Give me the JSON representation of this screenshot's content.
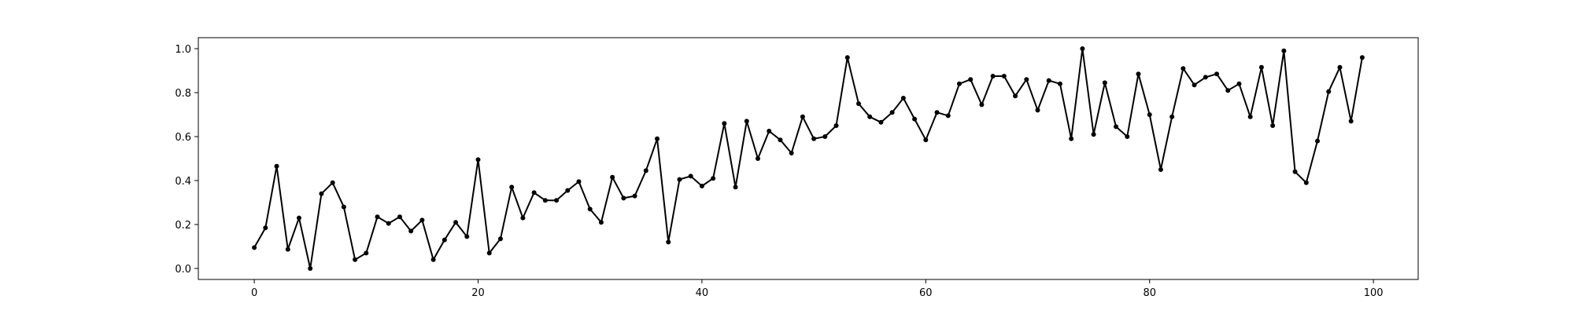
{
  "chart_data": {
    "type": "line",
    "title": "",
    "xlabel": "",
    "ylabel": "",
    "xlim": [
      -5,
      104
    ],
    "ylim": [
      -0.05,
      1.05
    ],
    "grid": false,
    "legend": "none",
    "line_color": "#000000",
    "marker": "dot",
    "x_ticks": [
      0,
      20,
      40,
      60,
      80,
      100
    ],
    "x_tick_labels": [
      "0",
      "20",
      "40",
      "60",
      "80",
      "100"
    ],
    "y_ticks": [
      0.0,
      0.2,
      0.4,
      0.6,
      0.8,
      1.0
    ],
    "y_tick_labels": [
      "0.0",
      "0.2",
      "0.4",
      "0.6",
      "0.8",
      "1.0"
    ],
    "x": [
      0,
      1,
      2,
      3,
      4,
      5,
      6,
      7,
      8,
      9,
      10,
      11,
      12,
      13,
      14,
      15,
      16,
      17,
      18,
      19,
      20,
      21,
      22,
      23,
      24,
      25,
      26,
      27,
      28,
      29,
      30,
      31,
      32,
      33,
      34,
      35,
      36,
      37,
      38,
      39,
      40,
      41,
      42,
      43,
      44,
      45,
      46,
      47,
      48,
      49,
      50,
      51,
      52,
      53,
      54,
      55,
      56,
      57,
      58,
      59,
      60,
      61,
      62,
      63,
      64,
      65,
      66,
      67,
      68,
      69,
      70,
      71,
      72,
      73,
      74,
      75,
      76,
      77,
      78,
      79,
      80,
      81,
      82,
      83,
      84,
      85,
      86,
      87,
      88,
      89,
      90,
      91,
      92,
      93,
      94,
      95,
      96,
      97,
      98,
      99
    ],
    "series": [
      {
        "values": [
          0.095,
          0.185,
          0.465,
          0.087,
          0.23,
          0.0,
          0.34,
          0.39,
          0.28,
          0.04,
          0.07,
          0.235,
          0.205,
          0.235,
          0.17,
          0.22,
          0.04,
          0.13,
          0.21,
          0.145,
          0.495,
          0.07,
          0.135,
          0.37,
          0.23,
          0.345,
          0.31,
          0.31,
          0.355,
          0.395,
          0.27,
          0.21,
          0.415,
          0.32,
          0.33,
          0.445,
          0.59,
          0.12,
          0.405,
          0.42,
          0.375,
          0.41,
          0.66,
          0.37,
          0.67,
          0.5,
          0.625,
          0.585,
          0.525,
          0.69,
          0.59,
          0.6,
          0.65,
          0.96,
          0.75,
          0.69,
          0.665,
          0.71,
          0.775,
          0.68,
          0.585,
          0.71,
          0.695,
          0.84,
          0.86,
          0.745,
          0.875,
          0.875,
          0.785,
          0.86,
          0.72,
          0.855,
          0.84,
          0.59,
          1.0,
          0.61,
          0.845,
          0.645,
          0.6,
          0.885,
          0.7,
          0.45,
          0.69,
          0.91,
          0.835,
          0.87,
          0.885,
          0.81,
          0.84,
          0.69,
          0.915,
          0.65,
          0.99,
          0.44,
          0.39,
          0.58,
          0.805,
          0.915,
          0.67,
          0.96
        ]
      }
    ]
  }
}
